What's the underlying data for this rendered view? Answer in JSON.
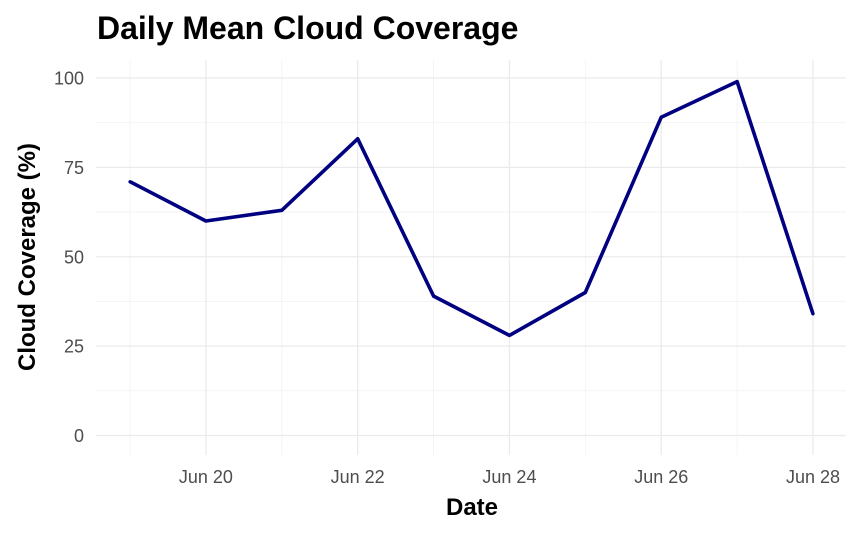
{
  "chart_data": {
    "type": "line",
    "title": "Daily Mean Cloud Coverage",
    "xlabel": "Date",
    "ylabel": "Cloud Coverage (%)",
    "x": [
      "2023-06-19",
      "2023-06-20",
      "2023-06-21",
      "2023-06-22",
      "2023-06-23",
      "2023-06-24",
      "2023-06-25",
      "2023-06-26",
      "2023-06-27",
      "2023-06-28"
    ],
    "series": [
      {
        "values": [
          71,
          60,
          63,
          83,
          39,
          28,
          40,
          89,
          99,
          34
        ]
      }
    ],
    "xlim": [
      "2023-06-19",
      "2023-06-28"
    ],
    "ylim": [
      0,
      100
    ],
    "x_ticks": [
      "Jun 20",
      "Jun 22",
      "Jun 24",
      "Jun 26",
      "Jun 28"
    ],
    "y_ticks": [
      0,
      25,
      50,
      75,
      100
    ],
    "grid": true,
    "legend": "none",
    "line_color": "#000080",
    "grid_color": "#ebebeb",
    "tick_label_color": "#4d4d4d"
  }
}
